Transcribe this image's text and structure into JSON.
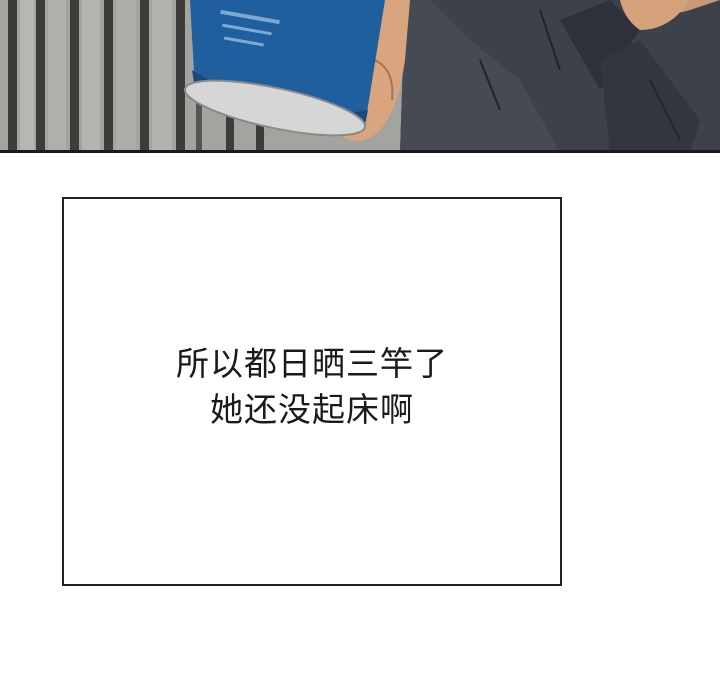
{
  "panel_top": {
    "colors": {
      "wall": "#9a9a96",
      "bars": "#3a3a38",
      "can_blue": "#1f5f9e",
      "can_rim": "#d8d8d8",
      "skin": "#d9a57e",
      "shirt": "#3b3f47",
      "border": "#1a1a1a"
    }
  },
  "narration": {
    "line1": "所以都日晒三竿了",
    "line2": "她还没起床啊"
  }
}
